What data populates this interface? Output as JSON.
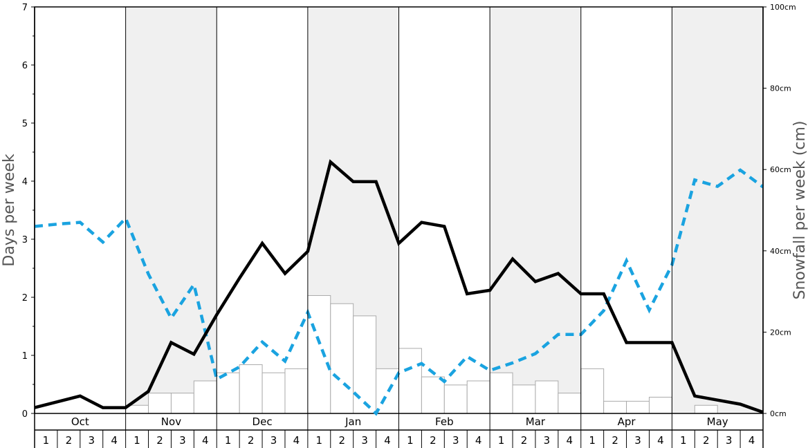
{
  "chart_data": {
    "type": "bar+line",
    "months": [
      "Oct",
      "Nov",
      "Dec",
      "Jan",
      "Feb",
      "Mar",
      "Apr",
      "May"
    ],
    "weeks": [
      "1",
      "2",
      "3",
      "4"
    ],
    "left_axis": {
      "label": "Days per week",
      "range": [
        0,
        7
      ],
      "ticks": [
        "0",
        "1",
        "2",
        "3",
        "4",
        "5",
        "6",
        "7"
      ]
    },
    "right_axis": {
      "label": "Snowfall per week (cm)",
      "range": [
        0,
        100
      ],
      "ticks": [
        "0cm",
        "20cm",
        "40cm",
        "60cm",
        "80cm",
        "100cm"
      ]
    },
    "snowfall_bars_cm": [
      0,
      0,
      0,
      0,
      2,
      5,
      5,
      8,
      10,
      12,
      10,
      11,
      29,
      27,
      24,
      11,
      16,
      9,
      7,
      8,
      10,
      7,
      8,
      5,
      11,
      3,
      3,
      4,
      0,
      2,
      0,
      0
    ],
    "solid_line_days": [
      0.1,
      0.2,
      0.3,
      0.1,
      0.1,
      0.38,
      1.22,
      1.02,
      1.7,
      2.33,
      2.93,
      2.41,
      2.79,
      4.33,
      3.99,
      3.99,
      2.93,
      3.29,
      3.22,
      2.06,
      2.12,
      2.66,
      2.27,
      2.41,
      2.06,
      2.06,
      1.22,
      1.22,
      1.22,
      0.3,
      0.23,
      0.16,
      0.02
    ],
    "dashed_line_days": [
      3.22,
      3.26,
      3.29,
      2.95,
      3.36,
      2.4,
      1.64,
      2.22,
      0.59,
      0.8,
      1.23,
      0.9,
      1.74,
      0.72,
      0.37,
      0.0,
      0.7,
      0.86,
      0.55,
      0.98,
      0.74,
      0.87,
      1.03,
      1.36,
      1.36,
      1.77,
      2.63,
      1.78,
      2.56,
      4.02,
      3.91,
      4.19,
      3.9
    ],
    "shaded_months": [
      "Nov",
      "Jan",
      "Mar",
      "May"
    ],
    "colors": {
      "solid_line": "#000000",
      "dashed_line": "#1aa3e0",
      "bars_fill": "#ffffff",
      "bars_stroke": "#aaaaaa",
      "shade": "#f0f0f0"
    }
  }
}
